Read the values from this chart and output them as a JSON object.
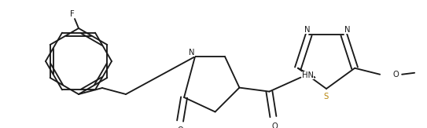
{
  "bg_color": "#ffffff",
  "line_color": "#1a1a1a",
  "sulfur_color": "#b8860b",
  "line_width": 1.35,
  "figsize": [
    5.43,
    1.63
  ],
  "dpi": 100,
  "font_size": 7.2,
  "xlim": [
    0,
    543
  ],
  "ylim": [
    0,
    163
  ]
}
